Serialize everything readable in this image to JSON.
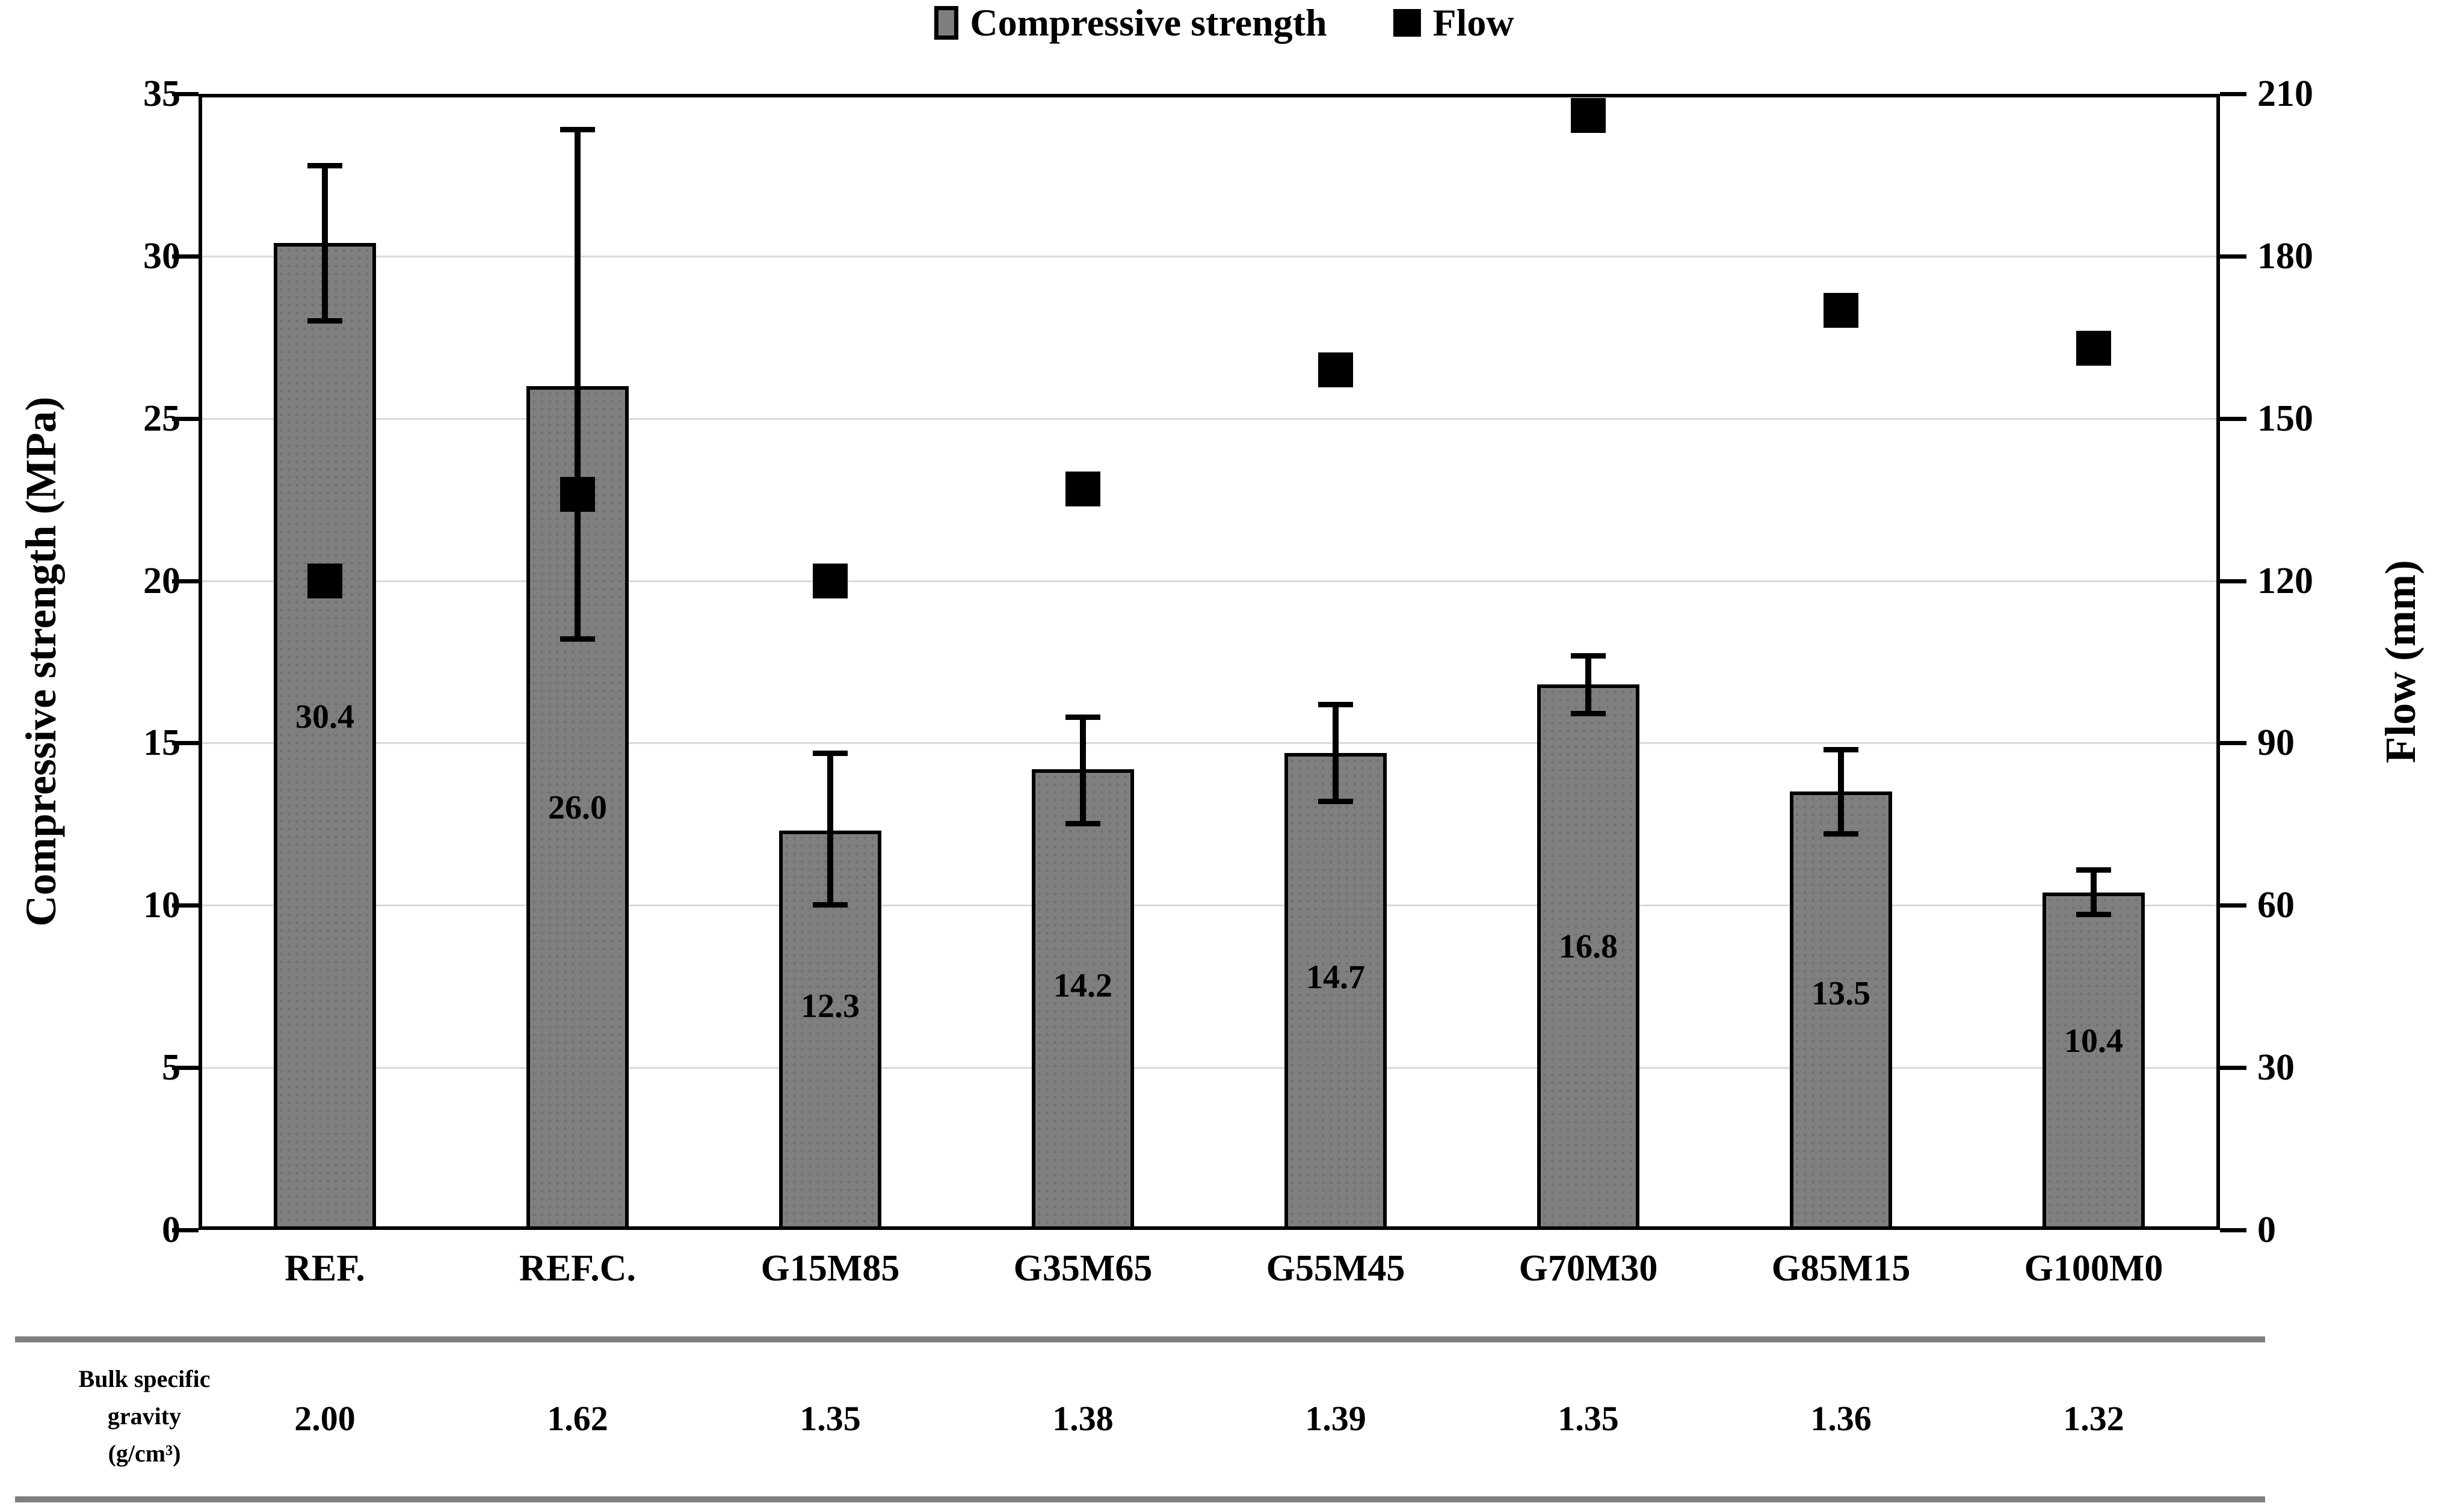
{
  "legend": {
    "strength_label": "Compressive strength",
    "flow_label": "Flow"
  },
  "left_axis": {
    "title": "Compressive strength (MPa)",
    "min": 0,
    "max": 35,
    "step": 5,
    "tick_labels": [
      "0",
      "5",
      "10",
      "15",
      "20",
      "25",
      "30",
      "35"
    ]
  },
  "right_axis": {
    "title": "Flow (mm)",
    "min": 0,
    "max": 210,
    "step": 30,
    "tick_labels": [
      "0",
      "30",
      "60",
      "90",
      "120",
      "150",
      "180",
      "210"
    ]
  },
  "chart_data": {
    "type": "bar",
    "categories": [
      "REF.",
      "REF.C.",
      "G15M85",
      "G35M65",
      "G55M45",
      "G70M30",
      "G85M15",
      "G100M0"
    ],
    "series": [
      {
        "name": "Compressive strength",
        "type": "bar",
        "axis": "left",
        "values": [
          30.4,
          26.0,
          12.3,
          14.2,
          14.7,
          16.8,
          13.5,
          10.4
        ],
        "data_labels": [
          "30.4",
          "26.0",
          "12.3",
          "14.2",
          "14.7",
          "16.8",
          "13.5",
          "10.4"
        ],
        "error_plus": [
          2.4,
          7.9,
          2.4,
          1.6,
          1.5,
          0.9,
          1.3,
          0.7
        ],
        "error_minus": [
          2.4,
          7.8,
          2.3,
          1.7,
          1.5,
          0.9,
          1.3,
          0.7
        ]
      },
      {
        "name": "Flow",
        "type": "scatter",
        "axis": "right",
        "values": [
          120,
          136,
          120,
          137,
          159,
          206,
          170,
          163
        ]
      }
    ],
    "title": "",
    "xlabel": "",
    "ylabel_left": "Compressive strength (MPa)",
    "ylabel_right": "Flow (mm)",
    "ylim_left": [
      0,
      35
    ],
    "ylim_right": [
      0,
      210
    ],
    "grid": true,
    "legend_position": "top"
  },
  "table": {
    "header_lines": [
      "Bulk specific",
      "gravity",
      "(g/cm³)"
    ],
    "values": [
      "2.00",
      "1.62",
      "1.35",
      "1.38",
      "1.39",
      "1.35",
      "1.36",
      "1.32"
    ]
  },
  "colors": {
    "bar_fill": "#7f7f7f",
    "bar_border": "#000000",
    "flow_marker": "#000000",
    "gridline": "#d9d9d9",
    "axis_line": "#000000",
    "table_rule": "#7f7f7f",
    "text": "#000000",
    "background": "#ffffff"
  }
}
